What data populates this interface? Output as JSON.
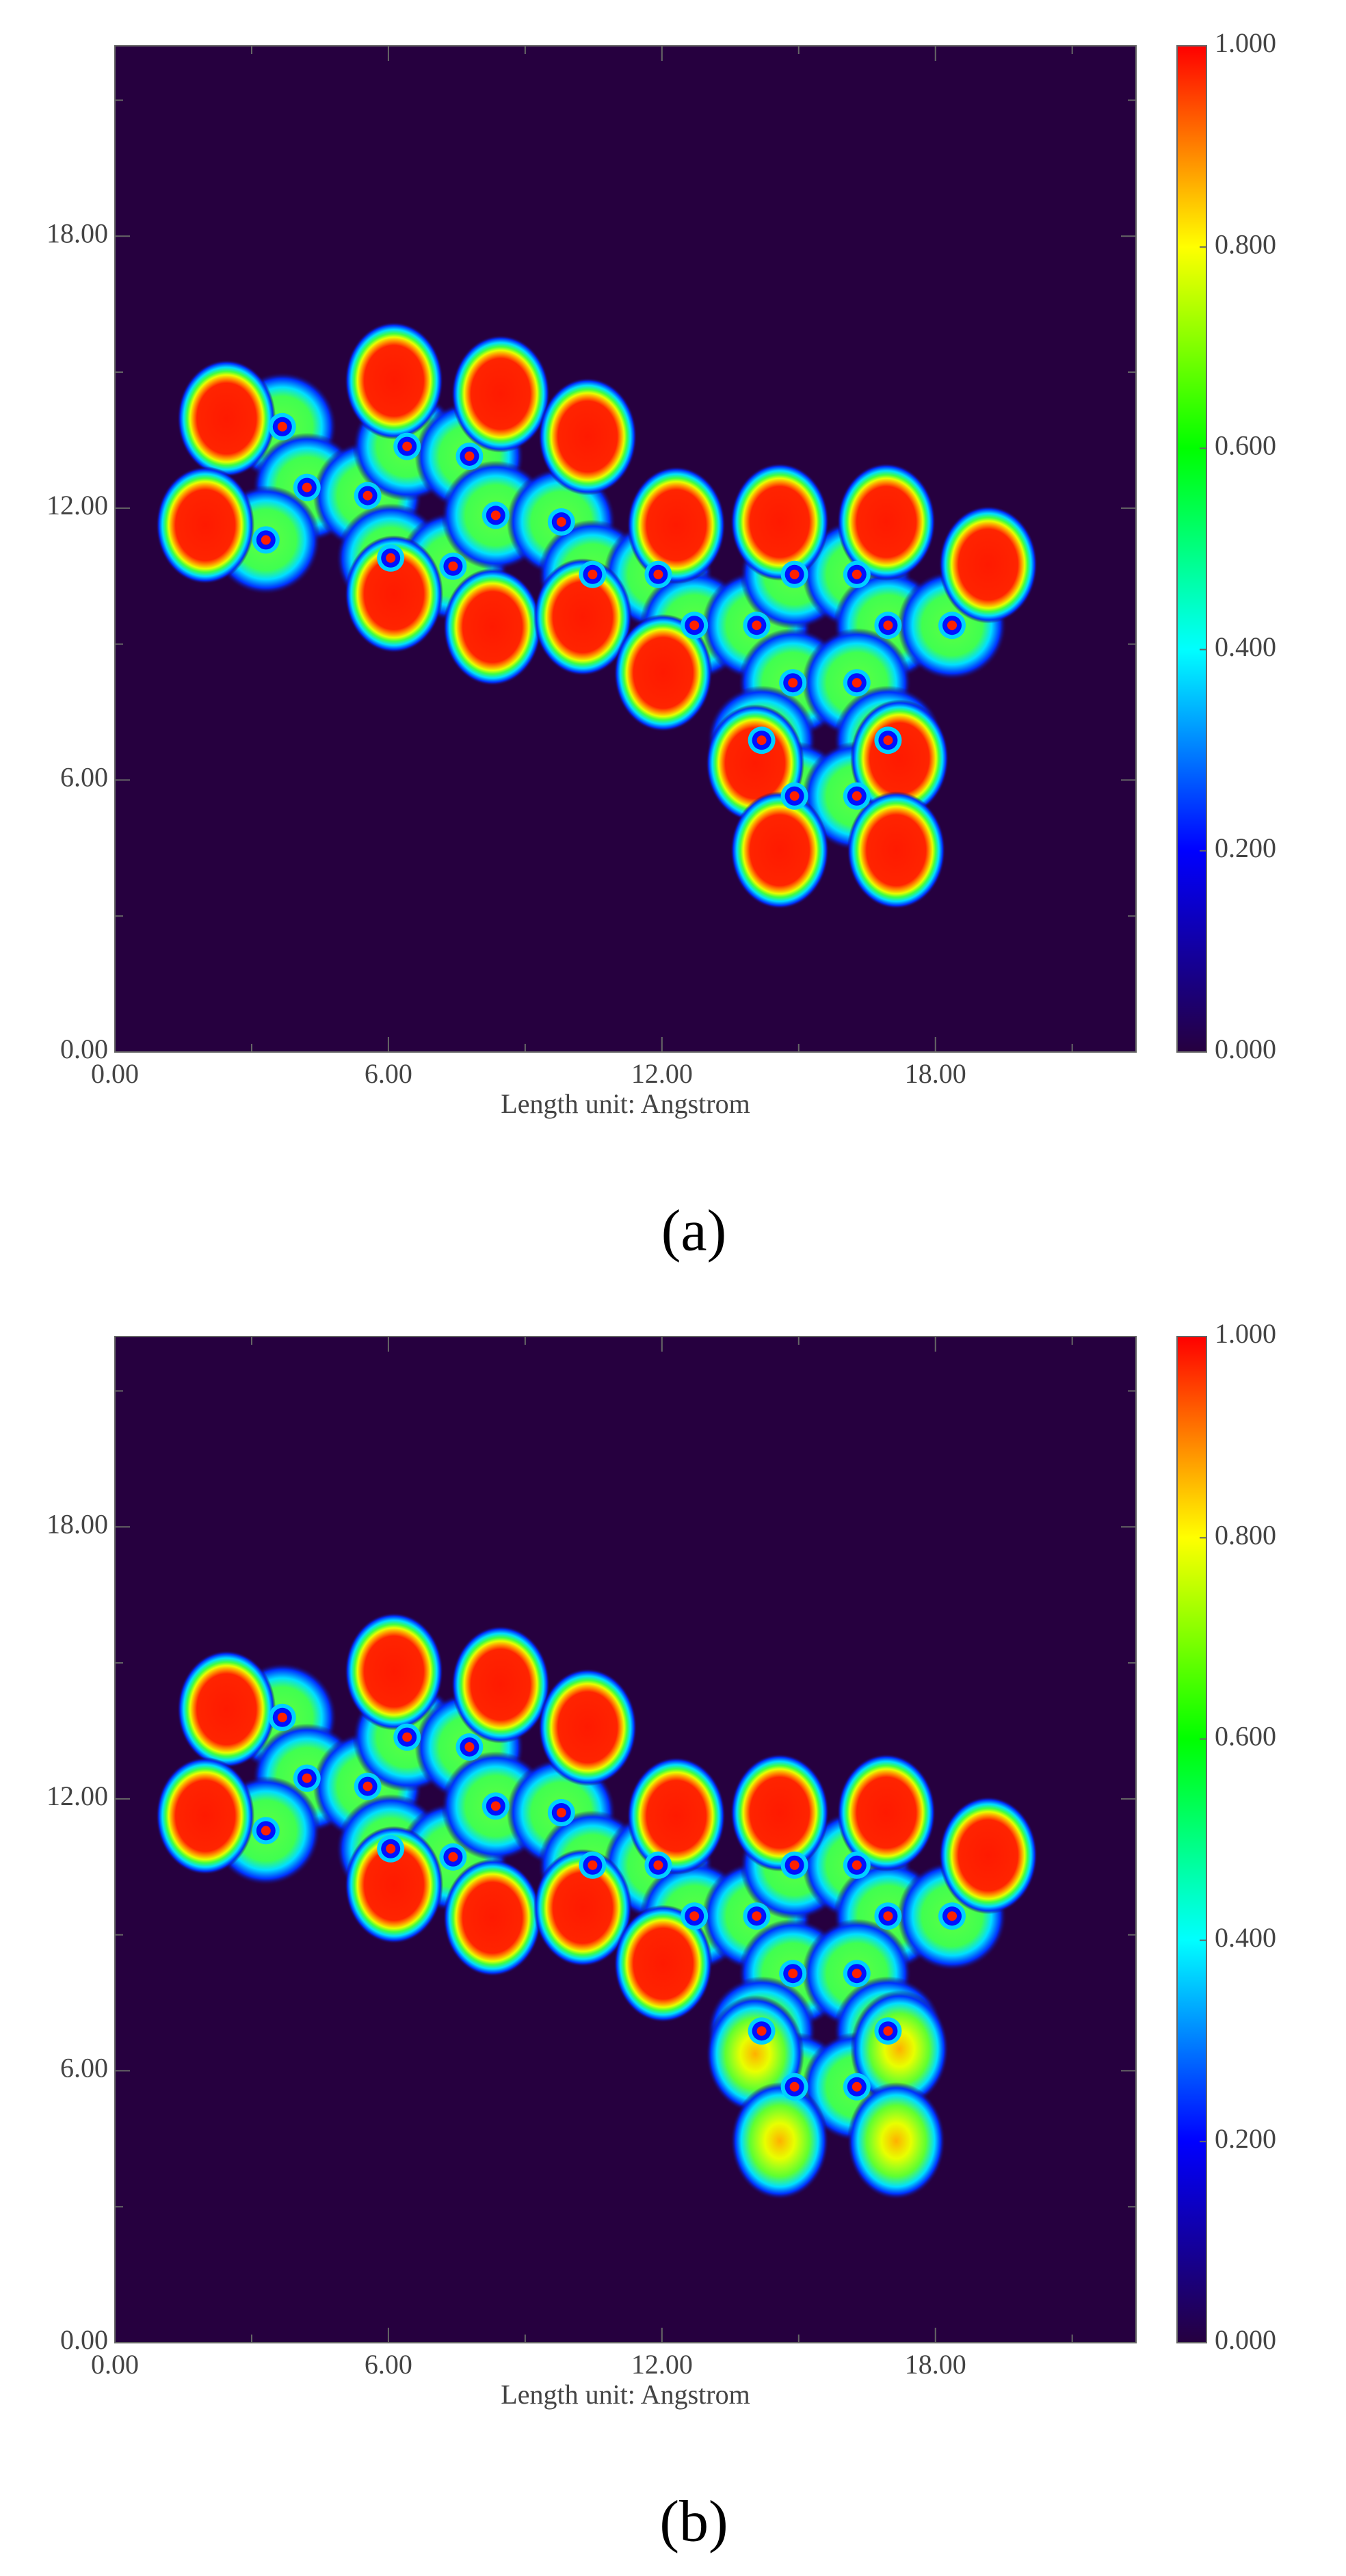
{
  "chart_data": [
    {
      "type": "heatmap",
      "label": "(a)",
      "xlabel": "Length unit: Angstrom",
      "xlim": [
        0,
        22.4
      ],
      "ylim": [
        0,
        22.2
      ],
      "xticks": [
        {
          "value": 0,
          "label": "0.00"
        },
        {
          "value": 6,
          "label": "6.00"
        },
        {
          "value": 12,
          "label": "12.00"
        },
        {
          "value": 18,
          "label": "18.00"
        }
      ],
      "yticks": [
        {
          "value": 0,
          "label": "0.00"
        },
        {
          "value": 6,
          "label": "6.00"
        },
        {
          "value": 12,
          "label": "12.00"
        },
        {
          "value": 18,
          "label": "18.00"
        }
      ],
      "xminorticks": [
        3,
        9,
        15,
        21
      ],
      "yminorticks": [
        3,
        9,
        15,
        21
      ],
      "zlim": [
        0,
        1
      ],
      "zticks": [
        {
          "value": 0,
          "label": "0.000"
        },
        {
          "value": 0.2,
          "label": "0.200"
        },
        {
          "value": 0.4,
          "label": "0.400"
        },
        {
          "value": 0.6,
          "label": "0.600"
        },
        {
          "value": 0.8,
          "label": "0.800"
        },
        {
          "value": 1,
          "label": "1.000"
        }
      ],
      "colorscale": [
        "#26003f",
        "#0000ff",
        "#00ffff",
        "#00ff00",
        "#ffff00",
        "#ff0000"
      ]
    },
    {
      "type": "heatmap",
      "label": "(b)",
      "xlabel": "Length unit: Angstrom",
      "xlim": [
        0,
        22.4
      ],
      "ylim": [
        0,
        22.2
      ],
      "xticks": [
        {
          "value": 0,
          "label": "0.00"
        },
        {
          "value": 6,
          "label": "6.00"
        },
        {
          "value": 12,
          "label": "12.00"
        },
        {
          "value": 18,
          "label": "18.00"
        }
      ],
      "yticks": [
        {
          "value": 0,
          "label": "0.00"
        },
        {
          "value": 6,
          "label": "6.00"
        },
        {
          "value": 12,
          "label": "12.00"
        },
        {
          "value": 18,
          "label": "18.00"
        }
      ],
      "xminorticks": [
        3,
        9,
        15,
        21
      ],
      "yminorticks": [
        3,
        9,
        15,
        21
      ],
      "zlim": [
        0,
        1
      ],
      "zticks": [
        {
          "value": 0,
          "label": "0.000"
        },
        {
          "value": 0.2,
          "label": "0.200"
        },
        {
          "value": 0.4,
          "label": "0.400"
        },
        {
          "value": 0.6,
          "label": "0.600"
        },
        {
          "value": 0.8,
          "label": "0.800"
        },
        {
          "value": 1,
          "label": "1.000"
        }
      ],
      "colorscale": [
        "#26003f",
        "#0000ff",
        "#00ffff",
        "#00ff00",
        "#ffff00",
        "#ff0000"
      ]
    }
  ]
}
